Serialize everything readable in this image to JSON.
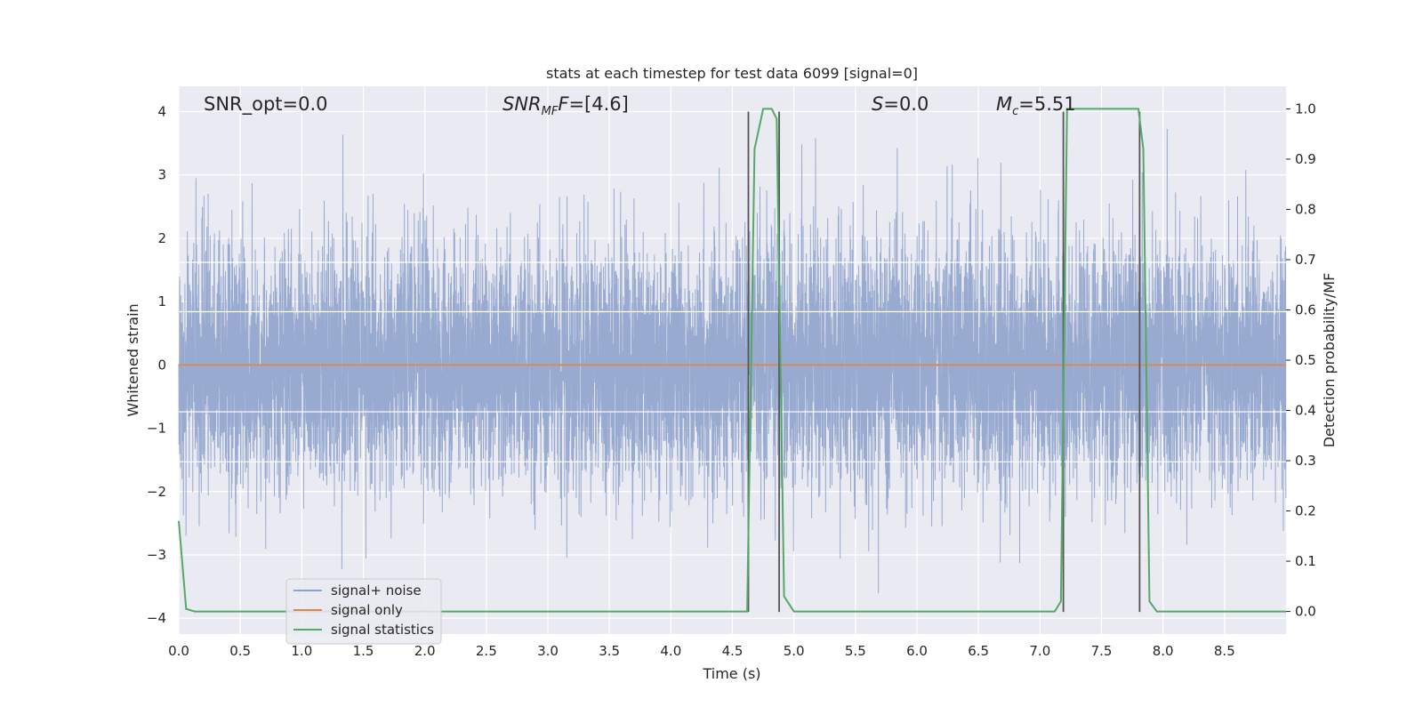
{
  "chart_data": {
    "type": "line",
    "title": "stats at each timestep for test data 6099 [signal=0]",
    "xlabel": "Time (s)",
    "ylabel": "Whitened strain",
    "y2label": "Detection probability/MF",
    "xlim": [
      0.0,
      9.0
    ],
    "ylim": [
      -4.25,
      4.4
    ],
    "y2lim": [
      -0.045,
      1.045
    ],
    "x_ticks": [
      0.0,
      0.5,
      1.0,
      1.5,
      2.0,
      2.5,
      3.0,
      3.5,
      4.0,
      4.5,
      5.0,
      5.5,
      6.0,
      6.5,
      7.0,
      7.5,
      8.0,
      8.5
    ],
    "y_ticks": [
      -4,
      -3,
      -2,
      -1,
      0,
      1,
      2,
      3,
      4
    ],
    "y2_ticks": [
      0.0,
      0.1,
      0.2,
      0.3,
      0.4,
      0.5,
      0.6,
      0.7,
      0.8,
      0.9,
      1.0
    ],
    "grid": true,
    "legend_position": "lower-left",
    "annotations": [
      {
        "html": "SNR_opt=0.0"
      },
      {
        "html": "<tspan font-style=\"italic\">SNR</tspan><tspan font-style=\"italic\" font-size=\"13\" dy=\"5\">MF</tspan><tspan font-style=\"italic\" dy=\"-5\">F</tspan>=[4.6]"
      },
      {
        "html": "<tspan font-style=\"italic\">S</tspan>=0.0"
      },
      {
        "html": "<tspan font-style=\"italic\">M</tspan><tspan font-style=\"italic\" font-size=\"13\" dy=\"5\">c</tspan><tspan dy=\"-5\">=5.51</tspan>"
      }
    ],
    "series": [
      {
        "name": "signal+ noise",
        "axis": "left",
        "color": "#8fa3cc",
        "noise": {
          "points": 9000,
          "dt": 0.001,
          "std": 0.95,
          "min": -3.9,
          "max": 3.95
        }
      },
      {
        "name": "signal only",
        "axis": "left",
        "color": "#dd8452",
        "x": [
          0.0,
          9.0
        ],
        "y": [
          0.0,
          0.0
        ]
      },
      {
        "name": "signal statistics",
        "axis": "right",
        "color": "#55a868",
        "x": [
          0.0,
          0.06,
          0.13,
          4.62,
          4.68,
          4.75,
          4.82,
          4.86,
          4.92,
          5.0,
          7.12,
          7.17,
          7.22,
          7.35,
          7.5,
          7.8,
          7.84,
          7.89,
          7.95,
          9.0
        ],
        "y": [
          0.18,
          0.005,
          0.0,
          0.0,
          0.92,
          1.0,
          1.0,
          0.98,
          0.03,
          0.0,
          0.0,
          0.02,
          1.0,
          1.0,
          1.0,
          1.0,
          0.92,
          0.02,
          0.0,
          0.0
        ]
      }
    ],
    "vlines": [
      {
        "x": 4.63,
        "y": [
          -3.9,
          4.0
        ]
      },
      {
        "x": 4.88,
        "y": [
          -3.9,
          4.0
        ]
      },
      {
        "x": 7.19,
        "y": [
          -3.9,
          4.0
        ]
      },
      {
        "x": 7.81,
        "y": [
          -3.9,
          4.0
        ]
      }
    ],
    "hlines": [
      {
        "y": 1.62
      },
      {
        "y": 0.84
      },
      {
        "y": -0.74
      },
      {
        "y": -1.53
      }
    ]
  },
  "colors": {
    "axes_bg": "#eaeaf2",
    "grid": "#ffffff",
    "vline": "#555555",
    "zero_line": "#aaaaaa"
  }
}
